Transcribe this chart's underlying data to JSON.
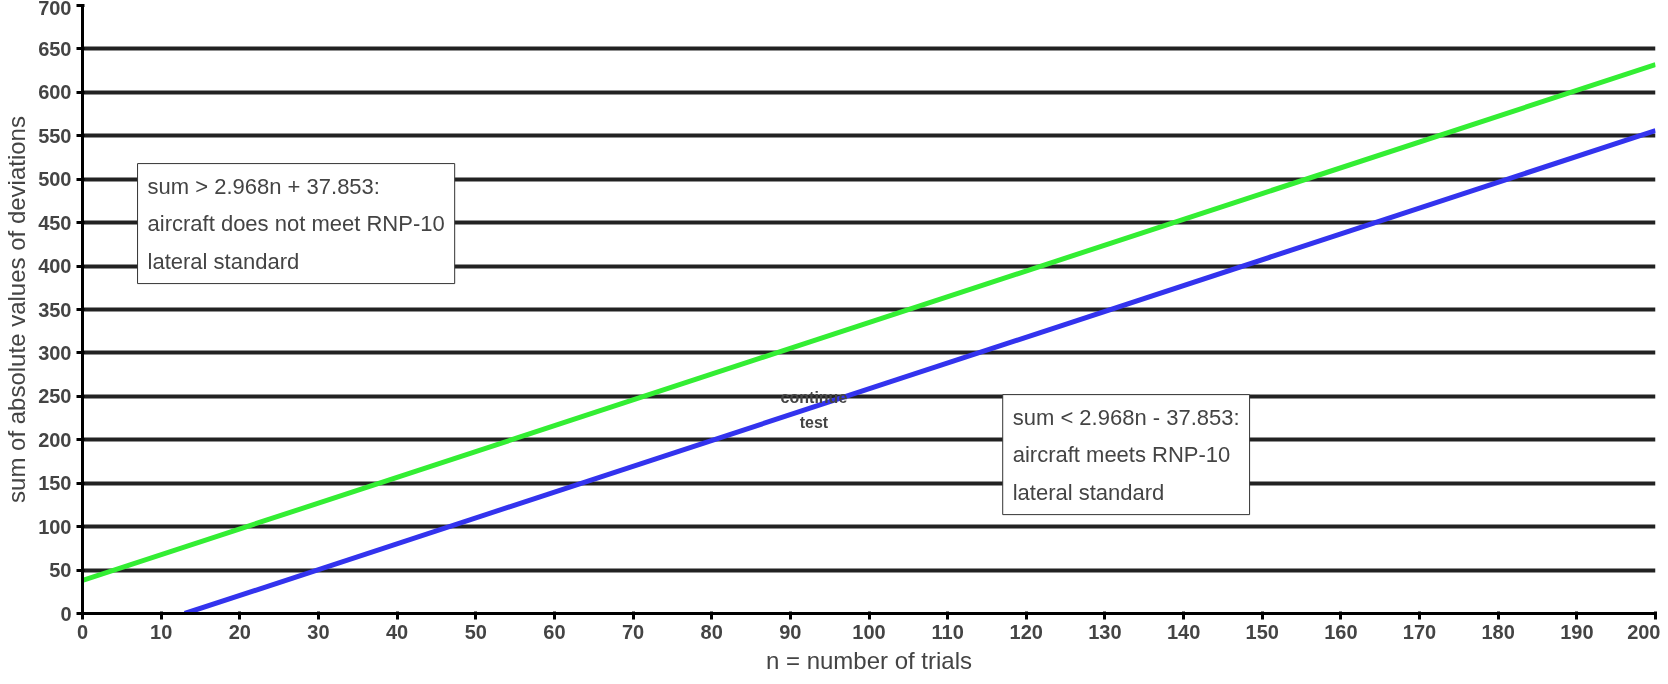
{
  "chart_data": {
    "type": "line",
    "xlabel": "n = number of trials",
    "ylabel": "sum of absolute values of deviations",
    "series": [
      {
        "color": "#33ee33",
        "x": [
          0,
          200
        ],
        "values": [
          38,
          632
        ]
      },
      {
        "color": "#3333ee",
        "x": [
          13,
          200
        ],
        "values": [
          0,
          556
        ]
      }
    ],
    "xlim": [
      0,
      200
    ],
    "xticks": [
      0,
      10,
      20,
      30,
      40,
      50,
      60,
      70,
      80,
      90,
      100,
      110,
      120,
      130,
      140,
      150,
      160,
      170,
      180,
      190,
      200
    ],
    "ylim": [
      0,
      700
    ],
    "yticks": [
      0,
      50,
      100,
      150,
      200,
      250,
      300,
      350,
      400,
      450,
      500,
      550,
      600,
      650,
      700
    ],
    "grid": "y",
    "marker": "none",
    "line_style": "solid",
    "annotations": [
      "sum > 2.968n + 37.853:\naircraft does not meet RNP-10\nlateral standard",
      "continue\ntest",
      "sum < 2.968n - 37.853:\naircraft meets RNP-10\nlateral standard"
    ]
  }
}
